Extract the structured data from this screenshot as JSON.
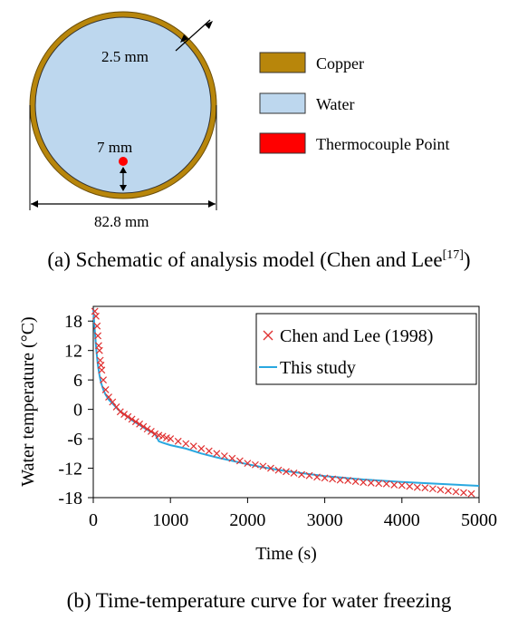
{
  "schematic": {
    "dim_wall": "2.5 mm",
    "dim_thermocouple": "7 mm",
    "dim_diameter": "82.8 mm",
    "legend": [
      {
        "label": "Copper",
        "color": "#b8860b"
      },
      {
        "label": "Water",
        "color": "#bdd7ee"
      },
      {
        "label": "Thermocouple Point",
        "color": "#ff0000"
      }
    ],
    "caption_text": "(a) Schematic of analysis model (Chen and Lee",
    "caption_ref": "[17]",
    "caption_close": ")"
  },
  "caption_b": "(b) Time-temperature curve for water freezing",
  "chart_data": {
    "type": "line",
    "xlabel": "Time (s)",
    "ylabel": "Water temperature (°C)",
    "xlim": [
      0,
      5000
    ],
    "ylim": [
      -18,
      21
    ],
    "xticks": [
      0,
      1000,
      2000,
      3000,
      4000,
      5000
    ],
    "yticks": [
      18,
      12,
      6,
      0,
      -6,
      -12,
      -18
    ],
    "grid": false,
    "legend_position": "top-right",
    "series": [
      {
        "name": "Chen and Lee (1998)",
        "marker": "x",
        "color": "#e03030",
        "x": [
          20,
          35,
          50,
          60,
          70,
          80,
          90,
          100,
          110,
          130,
          160,
          200,
          250,
          300,
          350,
          400,
          450,
          500,
          550,
          600,
          650,
          700,
          750,
          800,
          850,
          900,
          950,
          1000,
          1100,
          1200,
          1300,
          1400,
          1500,
          1600,
          1700,
          1800,
          1900,
          2000,
          2100,
          2200,
          2300,
          2400,
          2500,
          2600,
          2700,
          2800,
          2900,
          3000,
          3100,
          3200,
          3300,
          3400,
          3500,
          3600,
          3700,
          3800,
          3900,
          4000,
          4100,
          4200,
          4300,
          4400,
          4500,
          4600,
          4700,
          4800,
          4900
        ],
        "y": [
          20,
          19,
          17,
          15,
          13,
          12,
          10,
          9,
          8,
          6,
          4,
          2.5,
          1.5,
          0.5,
          -0.5,
          -1,
          -1.5,
          -2,
          -2.5,
          -3,
          -3.5,
          -4,
          -4.5,
          -5,
          -5.3,
          -5.5,
          -5.8,
          -6,
          -6.5,
          -7,
          -7.5,
          -8,
          -8.5,
          -9,
          -9.5,
          -10,
          -10.5,
          -11,
          -11.3,
          -11.6,
          -12,
          -12.4,
          -12.7,
          -13,
          -13.3,
          -13.5,
          -13.8,
          -14,
          -14.2,
          -14.4,
          -14.5,
          -14.7,
          -14.9,
          -15,
          -15.1,
          -15.2,
          -15.4,
          -15.5,
          -15.7,
          -15.9,
          -16,
          -16.2,
          -16.4,
          -16.6,
          -16.8,
          -17,
          -17.2
        ]
      },
      {
        "name": "This study",
        "marker": "line",
        "color": "#29a8e0",
        "x": [
          0,
          20,
          40,
          60,
          80,
          100,
          130,
          160,
          200,
          260,
          320,
          400,
          500,
          600,
          700,
          800,
          850,
          900,
          1000,
          1200,
          1400,
          1600,
          1800,
          2000,
          2200,
          2500,
          3000,
          3500,
          4000,
          4500,
          5000
        ],
        "y": [
          20.5,
          16,
          12,
          9,
          7,
          5.5,
          4,
          3,
          2,
          1,
          0,
          -1,
          -2.2,
          -3.2,
          -4.2,
          -5,
          -6.5,
          -6.8,
          -7.3,
          -8,
          -9,
          -9.8,
          -10.5,
          -11.2,
          -11.8,
          -12.6,
          -13.6,
          -14.3,
          -14.8,
          -15.2,
          -15.6
        ]
      }
    ]
  }
}
